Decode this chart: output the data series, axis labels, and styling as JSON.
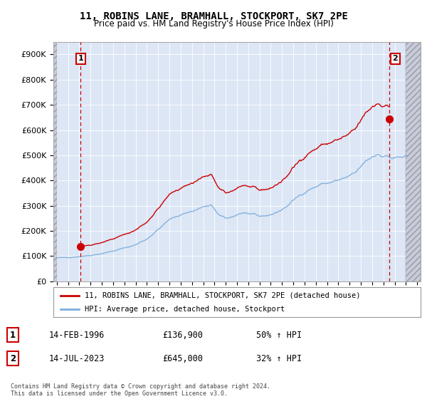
{
  "title": "11, ROBINS LANE, BRAMHALL, STOCKPORT, SK7 2PE",
  "subtitle": "Price paid vs. HM Land Registry's House Price Index (HPI)",
  "hpi_label": "HPI: Average price, detached house, Stockport",
  "property_label": "11, ROBINS LANE, BRAMHALL, STOCKPORT, SK7 2PE (detached house)",
  "sale1_date": "14-FEB-1996",
  "sale1_price": 136900,
  "sale1_label": "50% ↑ HPI",
  "sale2_date": "14-JUL-2023",
  "sale2_price": 645000,
  "sale2_label": "32% ↑ HPI",
  "property_color": "#cc0000",
  "hpi_color": "#7aaddc",
  "background_color": "#dce6f5",
  "ylim": [
    0,
    950000
  ],
  "xlim_start": 1993.7,
  "xlim_end": 2026.3,
  "sale1_x": 1996.12,
  "sale2_x": 2023.54,
  "footnote": "Contains HM Land Registry data © Crown copyright and database right 2024.\nThis data is licensed under the Open Government Licence v3.0."
}
